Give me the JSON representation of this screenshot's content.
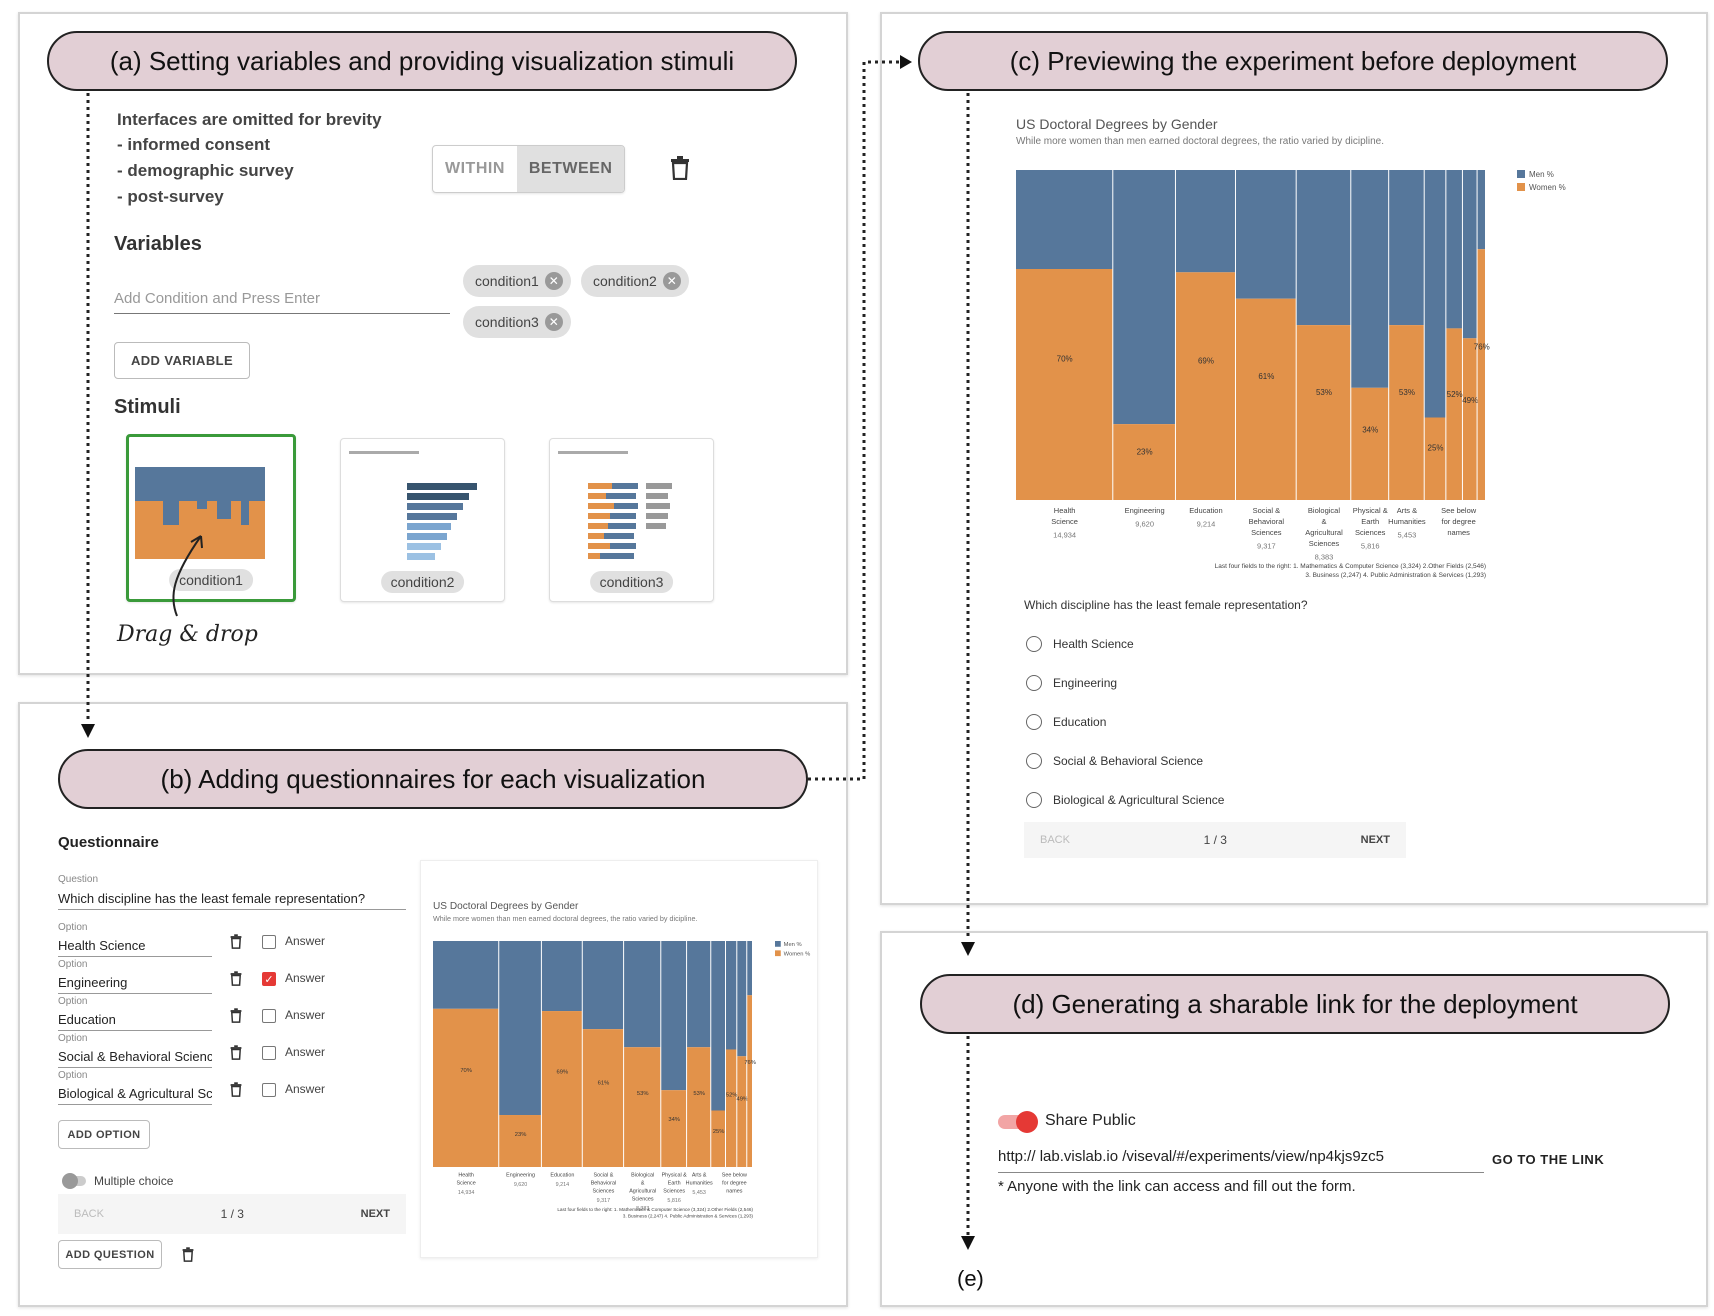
{
  "panels": {
    "a": {
      "title": "(a) Setting variables and providing visualization stimuli",
      "note_heading": "Interfaces are omitted for brevity",
      "note_items": [
        "- informed consent",
        "- demographic survey",
        "- post-survey"
      ],
      "design_toggle": {
        "within": "WITHIN",
        "between": "BETWEEN",
        "selected": "BETWEEN"
      },
      "variables_heading": "Variables",
      "condition_input_placeholder": "Add Condition and Press Enter",
      "conditions": [
        "condition1",
        "condition2",
        "condition3"
      ],
      "add_variable_label": "ADD VARIABLE",
      "stimuli_heading": "Stimuli",
      "stimuli_labels": [
        "condition1",
        "condition2",
        "condition3"
      ],
      "drag_note": "Drag & drop"
    },
    "b": {
      "title": "(b) Adding questionnaires for each visualization",
      "questionnaire_heading": "Questionnaire",
      "question_label": "Question",
      "question_text": "Which discipline has the least female representation?",
      "option_label": "Option",
      "answer_label": "Answer",
      "options": [
        {
          "text": "Health Science",
          "answer": false
        },
        {
          "text": "Engineering",
          "answer": true
        },
        {
          "text": "Education",
          "answer": false
        },
        {
          "text": "Social & Behavioral Science",
          "answer": false
        },
        {
          "text": "Biological & Agricultural Sci",
          "answer": false
        }
      ],
      "add_option_label": "ADD OPTION",
      "multiple_choice_label": "Multiple choice",
      "nav": {
        "back": "BACK",
        "page": "1 / 3",
        "next": "NEXT"
      },
      "add_question_label": "ADD QUESTION"
    },
    "c": {
      "title": "(c) Previewing the experiment before deployment",
      "question_text": "Which discipline has the least female representation?",
      "radio_options": [
        "Health Science",
        "Engineering",
        "Education",
        "Social & Behavioral Science",
        "Biological & Agricultural Science"
      ],
      "nav": {
        "back": "BACK",
        "page": "1 / 3",
        "next": "NEXT"
      }
    },
    "d": {
      "title": "(d) Generating a sharable link for the deployment",
      "share_label": "Share Public",
      "link_url": "http:// lab.vislab.io /viseval/#/experiments/view/np4kjs9zc5",
      "go_link_label": "GO TO THE LINK",
      "note": "*  Anyone with the link can access and fill out the form.",
      "end_label": "(e)"
    }
  },
  "colors": {
    "men": "#56779b",
    "women": "#e2924a",
    "pill": "#e2cfd5",
    "answer": "#e53935",
    "selected_border": "#3a9a3a"
  },
  "chart_data": {
    "type": "bar",
    "title": "US Doctoral Degrees by Gender",
    "subtitle": "While more women than men earned doctoral degrees, the ratio varied by dicipline.",
    "legend": [
      "Men %",
      "Women %"
    ],
    "legend_position": "top-right",
    "categories": [
      "Health Science",
      "Engineering",
      "Education",
      "Social & Behavioral Sciences",
      "Biological & Agricultural Sciences",
      "Physical & Earth Sciences",
      "Arts & Humanities",
      "See below for degree names"
    ],
    "category_totals": [
      "14,934",
      "9,620",
      "9,214",
      "9,317",
      "8,383",
      "5,816",
      "5,453",
      ""
    ],
    "mekko_columns": [
      {
        "total": 14934,
        "women": 70,
        "label": "70%"
      },
      {
        "total": 9620,
        "women": 23,
        "label": "23%"
      },
      {
        "total": 9214,
        "women": 69,
        "label": "69%"
      },
      {
        "total": 9317,
        "women": 61,
        "label": "61%"
      },
      {
        "total": 8383,
        "women": 53,
        "label": "53%"
      },
      {
        "total": 5816,
        "women": 34,
        "label": "34%"
      },
      {
        "total": 5453,
        "women": 53,
        "label": "53%"
      },
      {
        "total": 3324,
        "women": 25,
        "label": "25%"
      },
      {
        "total": 2546,
        "women": 52,
        "label": "52%"
      },
      {
        "total": 2247,
        "women": 49,
        "label": "49%"
      },
      {
        "total": 1293,
        "women": 76,
        "label": "76%"
      }
    ],
    "footnote_1": "Last four fields to the right: 1. Mathematics & Computer Science (3,324) 2.Other Fields (2,546)",
    "footnote_2": "3. Business (2,247) 4. Public Administration & Services (1,293)",
    "ylim": [
      0,
      100
    ]
  }
}
